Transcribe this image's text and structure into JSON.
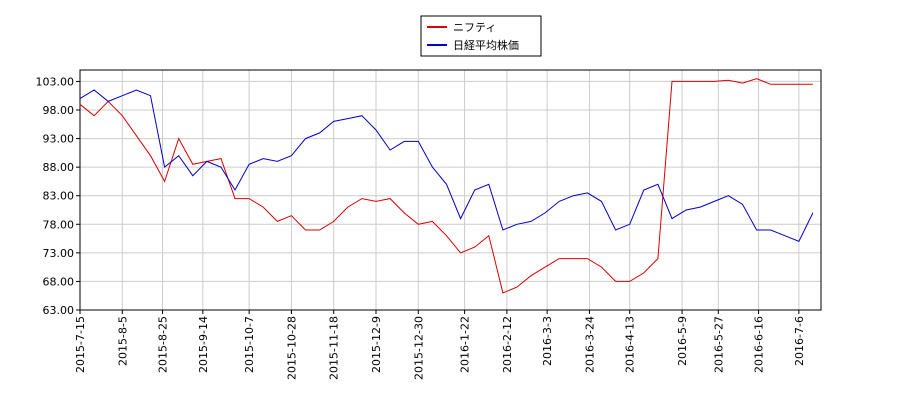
{
  "chart_data": {
    "type": "line",
    "x": [
      "2015-7-15",
      "2015-7-22",
      "2015-7-29",
      "2015-8-5",
      "2015-8-12",
      "2015-8-19",
      "2015-8-26",
      "2015-9-2",
      "2015-9-9",
      "2015-9-16",
      "2015-9-23",
      "2015-9-30",
      "2015-10-7",
      "2015-10-14",
      "2015-10-21",
      "2015-10-28",
      "2015-11-4",
      "2015-11-11",
      "2015-11-18",
      "2015-11-25",
      "2015-12-2",
      "2015-12-9",
      "2015-12-16",
      "2015-12-23",
      "2015-12-30",
      "2016-1-6",
      "2016-1-13",
      "2016-1-20",
      "2016-1-27",
      "2016-2-3",
      "2016-2-10",
      "2016-2-17",
      "2016-2-24",
      "2016-3-2",
      "2016-3-9",
      "2016-3-16",
      "2016-3-23",
      "2016-3-30",
      "2016-4-6",
      "2016-4-13",
      "2016-4-20",
      "2016-4-27",
      "2016-5-4",
      "2016-5-11",
      "2016-5-18",
      "2016-5-25",
      "2016-6-1",
      "2016-6-8",
      "2016-6-15",
      "2016-6-22",
      "2016-6-29",
      "2016-7-6",
      "2016-7-13"
    ],
    "series": [
      {
        "name": "ニフティ",
        "color": "#dd0000",
        "values": [
          99,
          97,
          99.5,
          97,
          93.5,
          90,
          85.5,
          93,
          88.5,
          89,
          89.5,
          82.5,
          82.5,
          81,
          78.5,
          79.5,
          77,
          77,
          78.5,
          81,
          82.5,
          82,
          82.5,
          80,
          78,
          78.5,
          76,
          73,
          74,
          76,
          66,
          67,
          69,
          70.5,
          72,
          72,
          72,
          70.5,
          68,
          68,
          69.5,
          72,
          103,
          103,
          103,
          103,
          103.2,
          102.7,
          103.5,
          102.5,
          102.5,
          102.5,
          102.5
        ]
      },
      {
        "name": "日経平均株価",
        "color": "#0000cc",
        "values": [
          100,
          101.5,
          99.5,
          100.5,
          101.5,
          100.5,
          88,
          90,
          86.5,
          89,
          88,
          84,
          88.5,
          89.5,
          89,
          90,
          93,
          94,
          96,
          96.5,
          97,
          94.5,
          91,
          92.5,
          92.5,
          88,
          85,
          79,
          84,
          85,
          77,
          78,
          78.5,
          80,
          82,
          83,
          83.5,
          82,
          77,
          78,
          84,
          85,
          79,
          80.5,
          81,
          82,
          83,
          81.5,
          77,
          77,
          76,
          75,
          80
        ]
      }
    ],
    "xlim": [
      "2015-7-15",
      "2016-7-17"
    ],
    "xticks": [
      "2015-7-15",
      "2015-8-5",
      "2015-8-25",
      "2015-9-14",
      "2015-10-7",
      "2015-10-28",
      "2015-11-18",
      "2015-12-9",
      "2015-12-30",
      "2016-1-22",
      "2016-2-12",
      "2016-3-3",
      "2016-3-24",
      "2016-4-13",
      "2016-5-9",
      "2016-5-27",
      "2016-6-16",
      "2016-7-6"
    ],
    "ylim": [
      63,
      105
    ],
    "yticks": [
      {
        "value": 63,
        "label": "63.00"
      },
      {
        "value": 68,
        "label": "68.00"
      },
      {
        "value": 73,
        "label": "73.00"
      },
      {
        "value": 78,
        "label": "78.00"
      },
      {
        "value": 83,
        "label": "83.00"
      },
      {
        "value": 88,
        "label": "88.00"
      },
      {
        "value": 93,
        "label": "93.00"
      },
      {
        "value": 98,
        "label": "98.00"
      },
      {
        "value": 103,
        "label": "103.00"
      }
    ],
    "grid": true
  }
}
